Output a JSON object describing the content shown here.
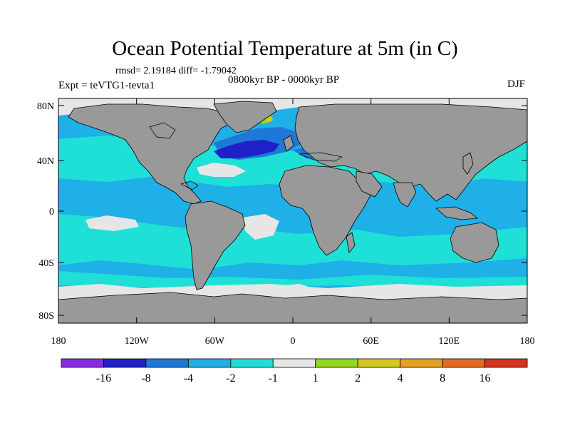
{
  "title": "Ocean Potential Temperature at 5m (in C)",
  "stats": "rmsd= 2.19184 diff= -1.79042",
  "experiment": "Expt = teVTG1-tevta1",
  "period": "0800kyr BP - 0000kyr BP",
  "season": "DJF",
  "lat_labels": [
    "80N",
    "40N",
    "0",
    "40S",
    "80S"
  ],
  "lon_labels": [
    "180",
    "120W",
    "60W",
    "0",
    "60E",
    "120E",
    "180"
  ],
  "colorbar": {
    "labels": [
      "-16",
      "-8",
      "-4",
      "-2",
      "-1",
      "1",
      "2",
      "4",
      "8",
      "16"
    ],
    "colors": [
      "#8a2be2",
      "#2020c8",
      "#1e78d8",
      "#1eb0e6",
      "#1ee0d6",
      "#e6e6e6",
      "#8fd81e",
      "#d6c81e",
      "#e6a01e",
      "#e66a1e",
      "#d6321e"
    ]
  },
  "colors": {
    "land": "#999999",
    "ocean_main": "#1eb0e6",
    "ocean_light": "#1ee0d6",
    "ocean_mid": "#1e78d8",
    "strong_neg": "#2020c8",
    "near_zero": "#e6e6e6",
    "pos_small": "#8fd81e",
    "pos_mid": "#d6c81e"
  }
}
